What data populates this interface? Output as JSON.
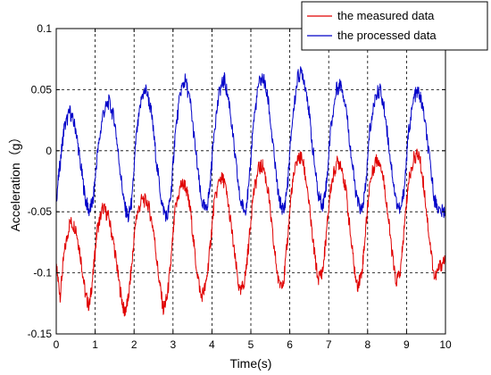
{
  "chart_data": {
    "type": "line",
    "xlabel": "Time(s)",
    "ylabel": "Acceleration（g）",
    "xlim": [
      0,
      10
    ],
    "ylim": [
      -0.15,
      0.1
    ],
    "xticks": [
      0,
      1,
      2,
      3,
      4,
      5,
      6,
      7,
      8,
      9,
      10
    ],
    "yticks": [
      -0.15,
      -0.1,
      -0.05,
      0,
      0.05,
      0.1
    ],
    "ytick_labels": [
      "-0.15",
      "-0.1",
      "-0.05",
      "0",
      "0.05",
      "0.1"
    ],
    "grid": true,
    "legend_position": "top-right",
    "series": [
      {
        "name": "the measured data",
        "color": "#e00000",
        "points": [
          [
            0.0,
            -0.095
          ],
          [
            0.1,
            -0.118
          ],
          [
            0.2,
            -0.085
          ],
          [
            0.35,
            -0.058
          ],
          [
            0.5,
            -0.063
          ],
          [
            0.62,
            -0.085
          ],
          [
            0.75,
            -0.118
          ],
          [
            0.85,
            -0.128
          ],
          [
            0.95,
            -0.1
          ],
          [
            1.05,
            -0.065
          ],
          [
            1.2,
            -0.046
          ],
          [
            1.35,
            -0.055
          ],
          [
            1.5,
            -0.08
          ],
          [
            1.62,
            -0.11
          ],
          [
            1.75,
            -0.133
          ],
          [
            1.85,
            -0.122
          ],
          [
            1.95,
            -0.09
          ],
          [
            2.05,
            -0.055
          ],
          [
            2.2,
            -0.04
          ],
          [
            2.35,
            -0.042
          ],
          [
            2.5,
            -0.065
          ],
          [
            2.62,
            -0.1
          ],
          [
            2.75,
            -0.13
          ],
          [
            2.85,
            -0.12
          ],
          [
            2.95,
            -0.09
          ],
          [
            3.05,
            -0.05
          ],
          [
            3.2,
            -0.028
          ],
          [
            3.32,
            -0.028
          ],
          [
            3.45,
            -0.05
          ],
          [
            3.58,
            -0.09
          ],
          [
            3.72,
            -0.12
          ],
          [
            3.85,
            -0.11
          ],
          [
            3.95,
            -0.08
          ],
          [
            4.05,
            -0.045
          ],
          [
            4.2,
            -0.022
          ],
          [
            4.32,
            -0.025
          ],
          [
            4.45,
            -0.05
          ],
          [
            4.58,
            -0.085
          ],
          [
            4.72,
            -0.118
          ],
          [
            4.85,
            -0.105
          ],
          [
            4.95,
            -0.075
          ],
          [
            5.05,
            -0.038
          ],
          [
            5.2,
            -0.015
          ],
          [
            5.32,
            -0.012
          ],
          [
            5.45,
            -0.035
          ],
          [
            5.58,
            -0.075
          ],
          [
            5.72,
            -0.11
          ],
          [
            5.85,
            -0.105
          ],
          [
            5.95,
            -0.07
          ],
          [
            6.05,
            -0.03
          ],
          [
            6.2,
            -0.006
          ],
          [
            6.32,
            -0.006
          ],
          [
            6.45,
            -0.03
          ],
          [
            6.58,
            -0.07
          ],
          [
            6.72,
            -0.105
          ],
          [
            6.85,
            -0.098
          ],
          [
            6.95,
            -0.065
          ],
          [
            7.05,
            -0.03
          ],
          [
            7.2,
            -0.01
          ],
          [
            7.32,
            -0.01
          ],
          [
            7.45,
            -0.035
          ],
          [
            7.58,
            -0.075
          ],
          [
            7.72,
            -0.112
          ],
          [
            7.85,
            -0.1
          ],
          [
            7.95,
            -0.065
          ],
          [
            8.05,
            -0.028
          ],
          [
            8.2,
            -0.008
          ],
          [
            8.32,
            -0.008
          ],
          [
            8.45,
            -0.032
          ],
          [
            8.58,
            -0.07
          ],
          [
            8.72,
            -0.108
          ],
          [
            8.85,
            -0.098
          ],
          [
            8.95,
            -0.06
          ],
          [
            9.05,
            -0.025
          ],
          [
            9.2,
            -0.005
          ],
          [
            9.32,
            -0.003
          ],
          [
            9.45,
            -0.03
          ],
          [
            9.58,
            -0.07
          ],
          [
            9.72,
            -0.105
          ],
          [
            9.85,
            -0.095
          ],
          [
            10.0,
            -0.088
          ]
        ]
      },
      {
        "name": "the processed data",
        "color": "#0000c8",
        "points": [
          [
            0.0,
            -0.04
          ],
          [
            0.1,
            -0.01
          ],
          [
            0.2,
            0.018
          ],
          [
            0.35,
            0.032
          ],
          [
            0.5,
            0.018
          ],
          [
            0.62,
            -0.01
          ],
          [
            0.75,
            -0.04
          ],
          [
            0.85,
            -0.05
          ],
          [
            0.95,
            -0.04
          ],
          [
            1.05,
            -0.005
          ],
          [
            1.2,
            0.03
          ],
          [
            1.35,
            0.04
          ],
          [
            1.5,
            0.025
          ],
          [
            1.62,
            -0.01
          ],
          [
            1.75,
            -0.045
          ],
          [
            1.85,
            -0.055
          ],
          [
            1.95,
            -0.04
          ],
          [
            2.05,
            0.01
          ],
          [
            2.2,
            0.045
          ],
          [
            2.32,
            0.05
          ],
          [
            2.45,
            0.03
          ],
          [
            2.58,
            -0.01
          ],
          [
            2.72,
            -0.045
          ],
          [
            2.85,
            -0.055
          ],
          [
            2.95,
            -0.035
          ],
          [
            3.05,
            0.012
          ],
          [
            3.2,
            0.05
          ],
          [
            3.32,
            0.058
          ],
          [
            3.45,
            0.038
          ],
          [
            3.58,
            0.0
          ],
          [
            3.72,
            -0.04
          ],
          [
            3.85,
            -0.05
          ],
          [
            3.95,
            -0.03
          ],
          [
            4.05,
            0.015
          ],
          [
            4.2,
            0.05
          ],
          [
            4.32,
            0.058
          ],
          [
            4.45,
            0.038
          ],
          [
            4.58,
            0.0
          ],
          [
            4.72,
            -0.04
          ],
          [
            4.85,
            -0.05
          ],
          [
            4.95,
            -0.03
          ],
          [
            5.05,
            0.018
          ],
          [
            5.2,
            0.055
          ],
          [
            5.32,
            0.06
          ],
          [
            5.45,
            0.04
          ],
          [
            5.58,
            0.0
          ],
          [
            5.72,
            -0.04
          ],
          [
            5.85,
            -0.05
          ],
          [
            5.95,
            -0.025
          ],
          [
            6.05,
            0.02
          ],
          [
            6.2,
            0.06
          ],
          [
            6.32,
            0.065
          ],
          [
            6.45,
            0.045
          ],
          [
            6.58,
            0.005
          ],
          [
            6.72,
            -0.035
          ],
          [
            6.85,
            -0.045
          ],
          [
            6.95,
            -0.025
          ],
          [
            7.05,
            0.018
          ],
          [
            7.2,
            0.05
          ],
          [
            7.32,
            0.055
          ],
          [
            7.45,
            0.035
          ],
          [
            7.58,
            -0.005
          ],
          [
            7.72,
            -0.04
          ],
          [
            7.85,
            -0.05
          ],
          [
            7.95,
            -0.03
          ],
          [
            8.05,
            0.015
          ],
          [
            8.2,
            0.045
          ],
          [
            8.32,
            0.05
          ],
          [
            8.45,
            0.03
          ],
          [
            8.58,
            -0.005
          ],
          [
            8.72,
            -0.04
          ],
          [
            8.85,
            -0.05
          ],
          [
            8.95,
            -0.028
          ],
          [
            9.05,
            0.015
          ],
          [
            9.2,
            0.045
          ],
          [
            9.32,
            0.048
          ],
          [
            9.45,
            0.03
          ],
          [
            9.58,
            -0.005
          ],
          [
            9.72,
            -0.04
          ],
          [
            9.85,
            -0.05
          ],
          [
            10.0,
            -0.05
          ]
        ]
      }
    ]
  }
}
